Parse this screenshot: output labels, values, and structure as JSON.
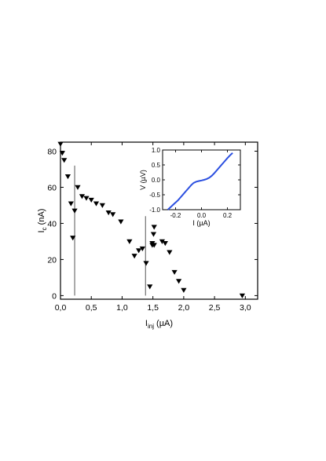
{
  "chart_data": [
    {
      "type": "scatter",
      "title": "",
      "xlabel_main": "I",
      "xlabel_sub": "inj",
      "xlabel_unit": "(µA)",
      "ylabel_main": "I",
      "ylabel_sub": "c",
      "ylabel_unit": "(nA)",
      "xlim": [
        0,
        3.2
      ],
      "ylim": [
        -2,
        85
      ],
      "xticks": [
        0,
        0.5,
        1.0,
        1.5,
        2.0,
        2.5,
        3.0
      ],
      "xtick_labels": [
        "0,0",
        "0,5",
        "1,0",
        "1,5",
        "2,0",
        "2,5",
        "3,0"
      ],
      "yticks": [
        0,
        20,
        40,
        60,
        80
      ],
      "ytick_labels": [
        "0",
        "20",
        "40",
        "60",
        "80"
      ],
      "marker": "down-triangle",
      "marker_color": "#000000",
      "x": [
        0.0,
        0.03,
        0.06,
        0.12,
        0.17,
        0.2,
        0.23,
        0.28,
        0.35,
        0.42,
        0.5,
        0.58,
        0.68,
        0.78,
        0.85,
        0.98,
        1.12,
        1.2,
        1.27,
        1.33,
        1.39,
        1.45,
        1.49,
        1.49,
        1.51,
        1.52,
        1.52,
        1.65,
        1.7,
        1.77,
        1.85,
        1.92,
        2.0,
        2.95
      ],
      "y": [
        84,
        79,
        75,
        66,
        51,
        32,
        47,
        60,
        55,
        54,
        53,
        51,
        50,
        46,
        45,
        41,
        30,
        22,
        25,
        26,
        18,
        5,
        28,
        29,
        34,
        28,
        38,
        30,
        29,
        24,
        13,
        8,
        3,
        0
      ],
      "vertical_lines_x": [
        0.23,
        1.38
      ],
      "vertical_lines_ylim": [
        [
          0,
          72
        ],
        [
          0,
          44
        ]
      ]
    },
    {
      "type": "line",
      "title": "",
      "xlabel_main": "I",
      "xlabel_unit": "(µA)",
      "ylabel_main": "V",
      "ylabel_unit": "(µV)",
      "xlim": [
        -0.3,
        0.3
      ],
      "ylim": [
        -1.0,
        1.0
      ],
      "xticks": [
        -0.2,
        0.0,
        0.2
      ],
      "xtick_labels": [
        "-0.2",
        "0.0",
        "0.2"
      ],
      "yticks": [
        -1.0,
        -0.5,
        0.0,
        0.5,
        1.0
      ],
      "ytick_labels": [
        "-1.0",
        "-0.5",
        "0.0",
        "0.5",
        "1.0"
      ],
      "line_color": "#2b4fe0",
      "x": [
        -0.26,
        -0.24,
        -0.22,
        -0.2,
        -0.18,
        -0.16,
        -0.14,
        -0.12,
        -0.1,
        -0.08,
        -0.06,
        -0.04,
        -0.02,
        0.0,
        0.02,
        0.04,
        0.06,
        0.08,
        0.1,
        0.12,
        0.14,
        0.16,
        0.18,
        0.2,
        0.22,
        0.24
      ],
      "y": [
        -1.0,
        -0.92,
        -0.84,
        -0.76,
        -0.68,
        -0.58,
        -0.48,
        -0.38,
        -0.28,
        -0.18,
        -0.1,
        -0.06,
        -0.04,
        -0.02,
        0.0,
        0.03,
        0.07,
        0.14,
        0.23,
        0.33,
        0.43,
        0.53,
        0.63,
        0.73,
        0.82,
        0.9
      ]
    }
  ]
}
